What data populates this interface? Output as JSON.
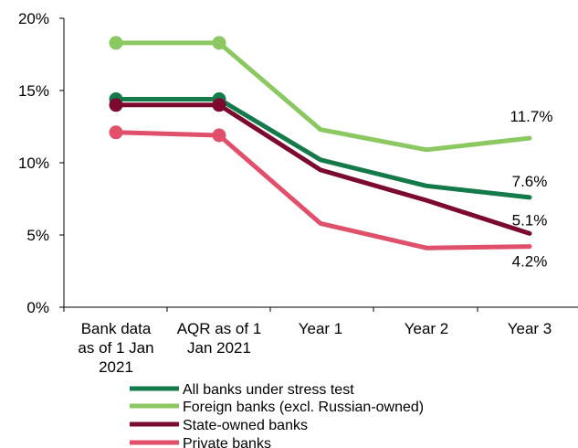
{
  "chart_data": {
    "type": "line",
    "title": "",
    "xlabel": "",
    "ylabel": "",
    "categories": [
      [
        "Bank data",
        "as of 1 Jan",
        "2021"
      ],
      [
        "AQR as of 1",
        "Jan 2021"
      ],
      [
        "Year 1"
      ],
      [
        "Year 2"
      ],
      [
        "Year 3"
      ]
    ],
    "ylim": [
      0,
      20
    ],
    "yticks": [
      0,
      5,
      10,
      15,
      20
    ],
    "ytick_labels": [
      "0%",
      "5%",
      "10%",
      "15%",
      "20%"
    ],
    "grid": false,
    "legend_position": "bottom",
    "series": [
      {
        "name": "All banks under stress test",
        "color": "#147a4a",
        "values": [
          14.4,
          14.4,
          10.2,
          8.4,
          7.6
        ],
        "end_label": "7.6%"
      },
      {
        "name": "Foreign banks (excl. Russian-owned)",
        "color": "#8cc862",
        "values": [
          18.3,
          18.3,
          12.3,
          10.9,
          11.7
        ],
        "end_label": "11.7%"
      },
      {
        "name": "State-owned banks",
        "color": "#7c0a2f",
        "values": [
          14.0,
          14.0,
          9.5,
          7.4,
          5.1
        ],
        "end_label": "5.1%"
      },
      {
        "name": "Private banks",
        "color": "#e0506a",
        "values": [
          12.1,
          11.9,
          5.8,
          4.1,
          4.2
        ],
        "end_label": "4.2%"
      }
    ],
    "markers_on": [
      0,
      1
    ]
  }
}
